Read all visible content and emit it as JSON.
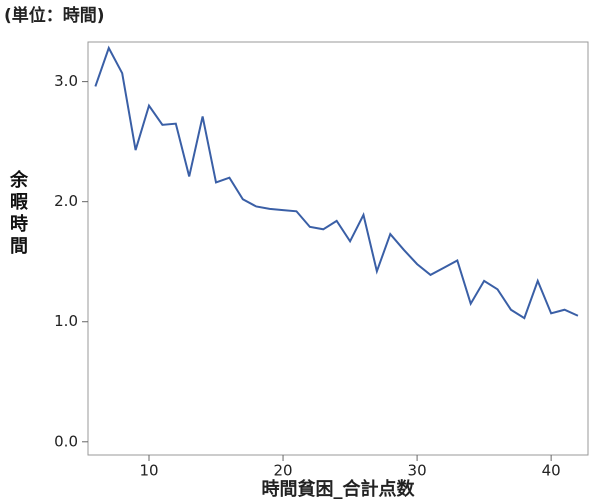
{
  "chart_data": {
    "type": "line",
    "title": "(単位：時間)",
    "x_label": "時間貧困_合計点数",
    "y_label": "余暇時間",
    "x": [
      6,
      7,
      8,
      9,
      10,
      11,
      12,
      13,
      14,
      15,
      16,
      17,
      18,
      19,
      20,
      21,
      22,
      23,
      24,
      25,
      26,
      27,
      28,
      29,
      30,
      31,
      32,
      33,
      34,
      35,
      36,
      37,
      38,
      39,
      40,
      41,
      42
    ],
    "series": [
      {
        "color": "#3a5fa6",
        "values": [
          2.96,
          3.28,
          3.07,
          2.43,
          2.8,
          2.64,
          2.65,
          2.21,
          2.71,
          2.16,
          2.2,
          2.02,
          1.96,
          1.94,
          1.93,
          1.92,
          1.79,
          1.77,
          1.84,
          1.67,
          1.89,
          1.42,
          1.73,
          1.6,
          1.48,
          1.39,
          1.45,
          1.51,
          1.15,
          1.34,
          1.27,
          1.1,
          1.03,
          1.34,
          1.07,
          1.1,
          1.05
        ]
      }
    ],
    "xlim": [
      5.45,
      42.75
    ],
    "ylim": [
      -0.11,
      3.33
    ],
    "xticks": [
      10,
      20,
      30,
      40
    ],
    "yticks": [
      {
        "value": 0,
        "label": "0.0"
      },
      {
        "value": 1,
        "label": "1.0"
      },
      {
        "value": 2,
        "label": "2.0"
      },
      {
        "value": 3,
        "label": "3.0"
      }
    ]
  }
}
